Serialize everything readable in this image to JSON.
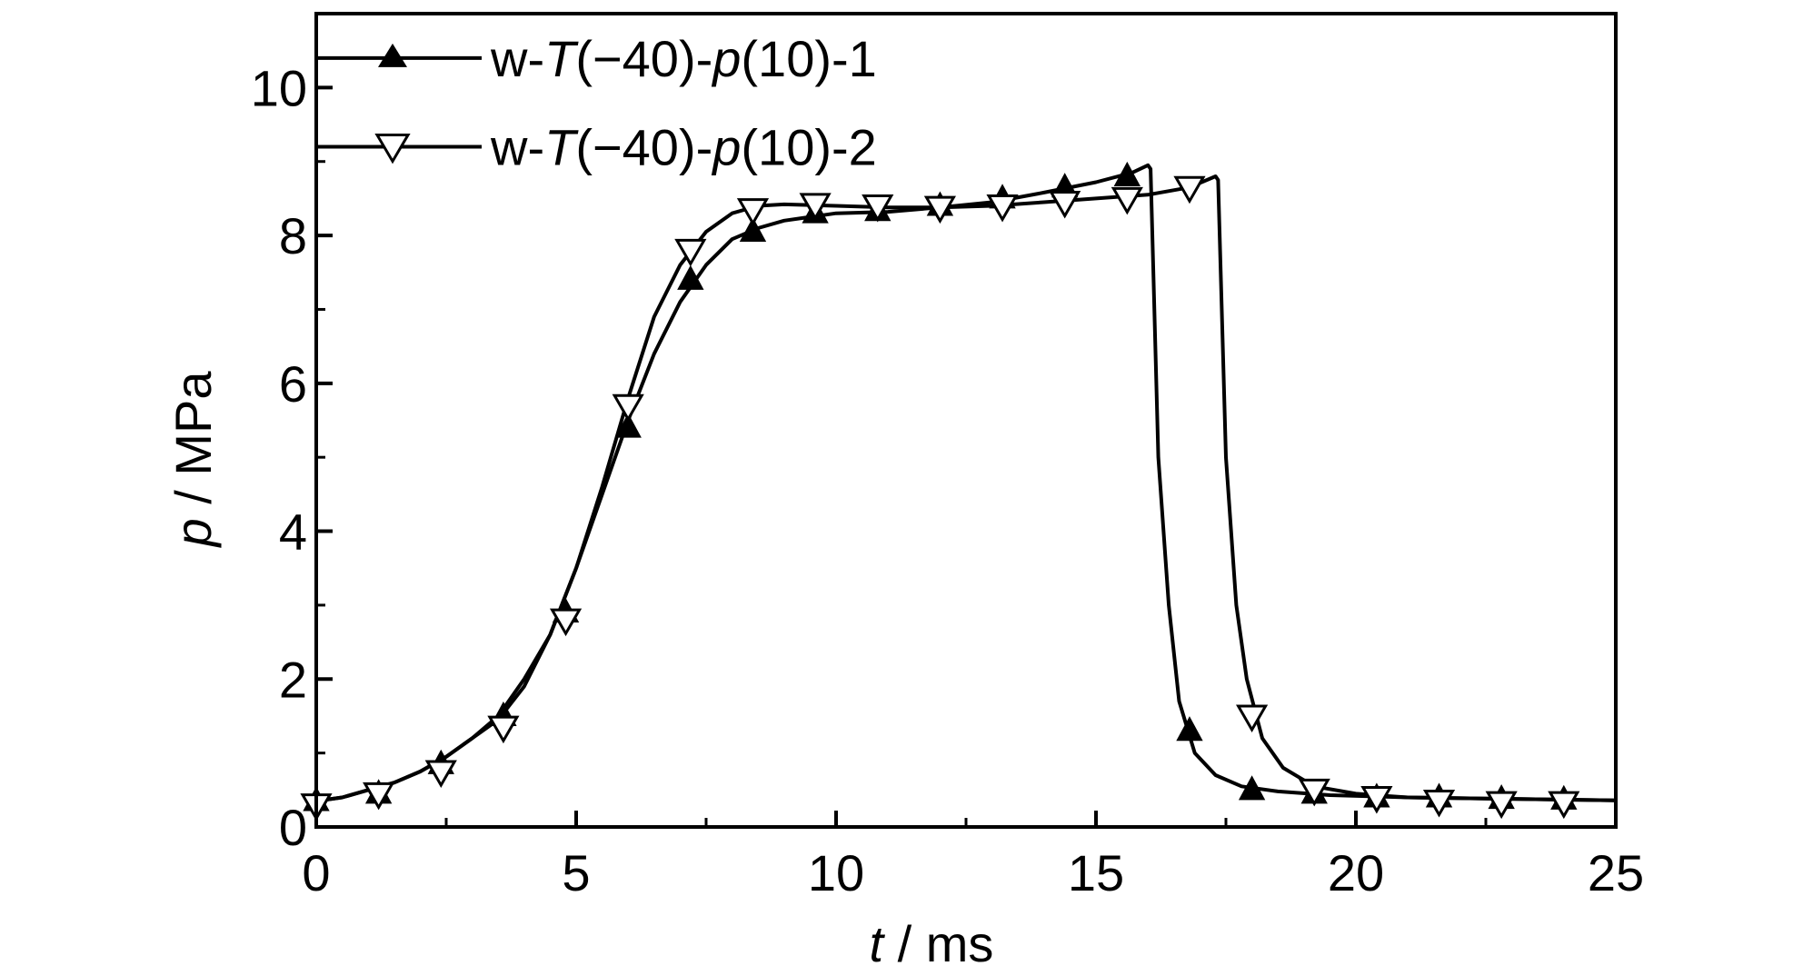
{
  "chart_data": {
    "type": "line",
    "xlabel": {
      "var": "t",
      "rest": " / ms"
    },
    "ylabel": {
      "var": "p",
      "rest": " / MPa"
    },
    "xlim": [
      0,
      25
    ],
    "ylim": [
      0,
      11
    ],
    "xticks": [
      0,
      5,
      10,
      15,
      20,
      25
    ],
    "yticks": [
      0,
      2,
      4,
      6,
      8,
      10
    ],
    "grid": false,
    "legend_position": "top-left",
    "series": [
      {
        "name": "w-T(−40)-p(10)-1",
        "name_parts": [
          {
            "t": "w-",
            "i": false
          },
          {
            "t": "T",
            "i": true
          },
          {
            "t": "(−40)-",
            "i": false
          },
          {
            "t": "p",
            "i": true
          },
          {
            "t": "(10)-1",
            "i": false
          }
        ],
        "marker": "filled-triangle-up",
        "color": "#000000",
        "x": [
          0,
          0.5,
          1,
          1.5,
          2,
          2.5,
          3,
          3.5,
          4,
          4.5,
          5,
          5.5,
          6,
          6.5,
          7,
          7.5,
          8,
          8.5,
          9,
          10,
          11,
          12,
          13,
          14,
          15,
          15.7,
          16.0,
          16.05,
          16.2,
          16.4,
          16.6,
          16.9,
          17.3,
          17.8,
          18.5,
          19.5,
          21,
          23,
          25
        ],
        "y": [
          0.35,
          0.4,
          0.5,
          0.6,
          0.75,
          0.95,
          1.2,
          1.5,
          2.0,
          2.6,
          3.5,
          4.5,
          5.5,
          6.4,
          7.1,
          7.6,
          7.95,
          8.1,
          8.2,
          8.3,
          8.32,
          8.38,
          8.45,
          8.58,
          8.72,
          8.85,
          8.95,
          8.9,
          5.0,
          3.0,
          1.7,
          1.0,
          0.7,
          0.55,
          0.48,
          0.43,
          0.4,
          0.38,
          0.36
        ],
        "marker_x": [
          0,
          1.2,
          2.4,
          3.6,
          4.8,
          6.0,
          7.2,
          8.4,
          9.6,
          10.8,
          12.0,
          13.2,
          14.4,
          15.6,
          16.8,
          18.0,
          19.2,
          20.4,
          21.6,
          22.8,
          24.0
        ],
        "marker_y": [
          0.35,
          0.45,
          0.85,
          1.5,
          2.9,
          5.4,
          7.4,
          8.05,
          8.3,
          8.33,
          8.4,
          8.5,
          8.65,
          8.8,
          1.3,
          0.5,
          0.45,
          0.4,
          0.4,
          0.38,
          0.37
        ]
      },
      {
        "name": "w-T(−40)-p(10)-2",
        "name_parts": [
          {
            "t": "w-",
            "i": false
          },
          {
            "t": "T",
            "i": true
          },
          {
            "t": "(−40)-",
            "i": false
          },
          {
            "t": "p",
            "i": true
          },
          {
            "t": "(10)-2",
            "i": false
          }
        ],
        "marker": "open-triangle-down",
        "color": "#000000",
        "x": [
          0,
          0.5,
          1,
          1.5,
          2,
          2.5,
          3,
          3.5,
          4,
          4.5,
          5,
          5.5,
          6,
          6.5,
          7,
          7.5,
          8,
          8.5,
          9,
          10,
          11,
          12,
          13,
          14,
          15,
          16,
          16.8,
          17.3,
          17.35,
          17.5,
          17.7,
          17.9,
          18.2,
          18.6,
          19.2,
          20,
          21,
          23,
          25
        ],
        "y": [
          0.35,
          0.4,
          0.5,
          0.6,
          0.75,
          0.95,
          1.2,
          1.45,
          1.9,
          2.6,
          3.5,
          4.6,
          5.8,
          6.9,
          7.6,
          8.05,
          8.3,
          8.4,
          8.42,
          8.4,
          8.38,
          8.38,
          8.4,
          8.45,
          8.5,
          8.55,
          8.65,
          8.8,
          8.75,
          5.0,
          3.0,
          2.0,
          1.2,
          0.8,
          0.55,
          0.45,
          0.4,
          0.38,
          0.36
        ],
        "marker_x": [
          0,
          1.2,
          2.4,
          3.6,
          4.8,
          6.0,
          7.2,
          8.4,
          9.6,
          10.8,
          12.0,
          13.2,
          14.4,
          15.6,
          16.8,
          18.0,
          19.2,
          20.4,
          21.6,
          22.8,
          24.0
        ],
        "marker_y": [
          0.3,
          0.45,
          0.75,
          1.35,
          2.8,
          5.7,
          7.8,
          8.35,
          8.42,
          8.4,
          8.38,
          8.4,
          8.45,
          8.5,
          8.65,
          1.5,
          0.5,
          0.4,
          0.35,
          0.33,
          0.33
        ]
      }
    ]
  }
}
